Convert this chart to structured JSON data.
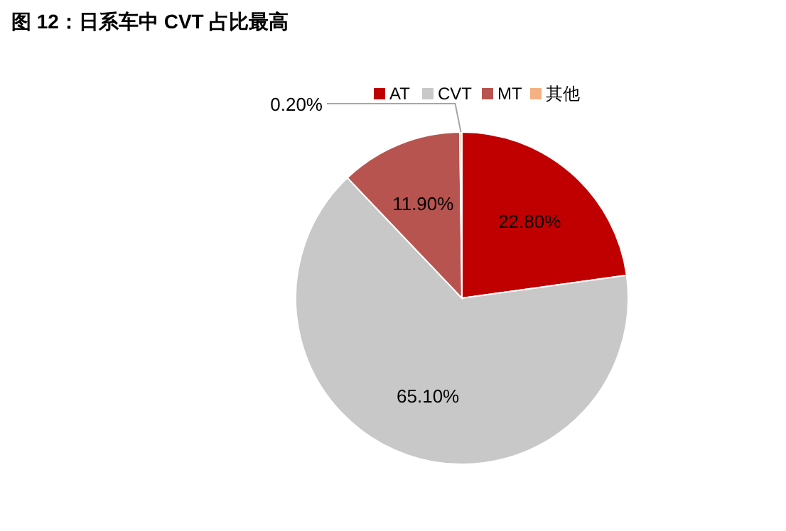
{
  "chart_data": {
    "type": "pie",
    "title": "图 12：日系车中 CVT 占比最高",
    "categories": [
      "AT",
      "CVT",
      "MT",
      "其他"
    ],
    "values": [
      22.8,
      65.1,
      11.9,
      0.2
    ],
    "colors": [
      "#c00000",
      "#c8c8c8",
      "#b85450",
      "#f4b183"
    ],
    "value_labels": [
      "22.80%",
      "65.10%",
      "11.90%",
      "0.20%"
    ],
    "legend": "top right"
  }
}
